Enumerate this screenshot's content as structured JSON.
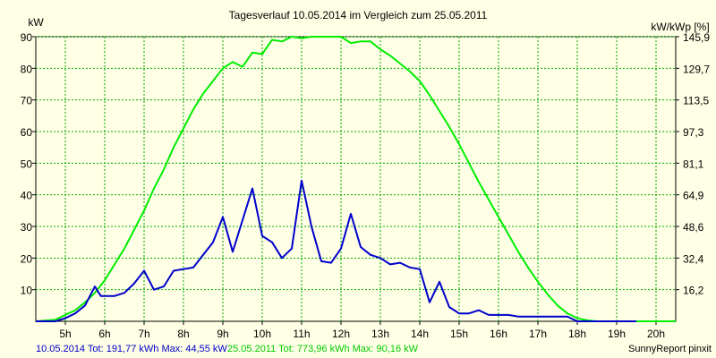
{
  "chart_data": {
    "type": "line",
    "title": "Tagesverlauf 10.05.2014 im Vergleich zum 25.05.2011",
    "ylabel_left": "kW",
    "ylabel_right": "kW/kWp [%]",
    "xlim": [
      4.25,
      20.5
    ],
    "ylim": [
      0,
      90
    ],
    "grid": true,
    "x_ticks": [
      5,
      6,
      7,
      8,
      9,
      10,
      11,
      12,
      13,
      14,
      15,
      16,
      17,
      18,
      19,
      20
    ],
    "x_tick_labels": [
      "5h",
      "6h",
      "7h",
      "8h",
      "9h",
      "10h",
      "11h",
      "12h",
      "13h",
      "14h",
      "15h",
      "16h",
      "17h",
      "18h",
      "19h",
      "20h"
    ],
    "y_ticks": [
      10,
      20,
      30,
      40,
      50,
      60,
      70,
      80,
      90
    ],
    "y_tick_labels": [
      "10",
      "20",
      "30",
      "40",
      "50",
      "60",
      "70",
      "80",
      "90"
    ],
    "y2_tick_labels": [
      "16,2",
      "32,4",
      "48,6",
      "64,9",
      "81,1",
      "97,3",
      "113,5",
      "129,7",
      "145,9"
    ],
    "series": [
      {
        "color": "#0000cc",
        "values": [
          [
            4.25,
            0
          ],
          [
            4.75,
            0
          ],
          [
            5.0,
            1
          ],
          [
            5.25,
            2.5
          ],
          [
            5.5,
            5
          ],
          [
            5.75,
            11
          ],
          [
            5.9,
            8
          ],
          [
            6.25,
            8
          ],
          [
            6.5,
            9
          ],
          [
            6.75,
            12
          ],
          [
            7.0,
            16
          ],
          [
            7.25,
            10
          ],
          [
            7.5,
            11
          ],
          [
            7.75,
            16
          ],
          [
            8.0,
            16.5
          ],
          [
            8.25,
            17
          ],
          [
            8.5,
            21
          ],
          [
            8.75,
            25
          ],
          [
            9.0,
            33
          ],
          [
            9.25,
            22
          ],
          [
            9.5,
            32
          ],
          [
            9.75,
            42
          ],
          [
            10.0,
            27
          ],
          [
            10.25,
            25
          ],
          [
            10.5,
            20
          ],
          [
            10.75,
            23
          ],
          [
            11.0,
            44.5
          ],
          [
            11.25,
            30
          ],
          [
            11.5,
            19
          ],
          [
            11.75,
            18.5
          ],
          [
            12.0,
            23
          ],
          [
            12.25,
            34
          ],
          [
            12.5,
            23.5
          ],
          [
            12.75,
            21
          ],
          [
            13.0,
            20
          ],
          [
            13.25,
            18
          ],
          [
            13.5,
            18.5
          ],
          [
            13.75,
            17
          ],
          [
            14.0,
            16.5
          ],
          [
            14.25,
            6
          ],
          [
            14.5,
            12.5
          ],
          [
            14.75,
            4.5
          ],
          [
            15.0,
            2.5
          ],
          [
            15.25,
            2.5
          ],
          [
            15.5,
            3.5
          ],
          [
            15.75,
            2
          ],
          [
            16.0,
            2
          ],
          [
            16.25,
            2
          ],
          [
            16.5,
            1.5
          ],
          [
            17.0,
            1.5
          ],
          [
            17.5,
            1.5
          ],
          [
            17.75,
            1.5
          ],
          [
            18.0,
            0
          ],
          [
            18.5,
            0
          ],
          [
            19.0,
            0
          ],
          [
            19.5,
            0
          ]
        ]
      },
      {
        "color": "#00ee00",
        "values": [
          [
            4.25,
            0
          ],
          [
            4.75,
            0.5
          ],
          [
            5.0,
            2
          ],
          [
            5.25,
            3.5
          ],
          [
            5.5,
            6
          ],
          [
            5.75,
            9
          ],
          [
            6.0,
            13
          ],
          [
            6.25,
            18
          ],
          [
            6.5,
            23
          ],
          [
            6.75,
            29
          ],
          [
            7.0,
            35
          ],
          [
            7.25,
            42
          ],
          [
            7.5,
            48
          ],
          [
            7.75,
            55
          ],
          [
            8.0,
            61
          ],
          [
            8.25,
            67
          ],
          [
            8.5,
            72
          ],
          [
            8.75,
            76
          ],
          [
            9.0,
            80
          ],
          [
            9.25,
            82
          ],
          [
            9.5,
            80.5
          ],
          [
            9.75,
            85
          ],
          [
            10.0,
            84.5
          ],
          [
            10.25,
            89
          ],
          [
            10.5,
            88.5
          ],
          [
            10.75,
            90
          ],
          [
            11.0,
            89.5
          ],
          [
            11.25,
            90
          ],
          [
            11.5,
            90
          ],
          [
            11.75,
            90
          ],
          [
            12.0,
            90
          ],
          [
            12.25,
            88
          ],
          [
            12.5,
            88.5
          ],
          [
            12.75,
            88.5
          ],
          [
            13.0,
            86
          ],
          [
            13.25,
            84
          ],
          [
            13.5,
            81.5
          ],
          [
            13.75,
            79
          ],
          [
            14.0,
            76
          ],
          [
            14.25,
            71.5
          ],
          [
            14.5,
            66.5
          ],
          [
            14.75,
            61.5
          ],
          [
            15.0,
            56
          ],
          [
            15.25,
            50
          ],
          [
            15.5,
            44
          ],
          [
            15.75,
            38.5
          ],
          [
            16.0,
            33
          ],
          [
            16.25,
            27.5
          ],
          [
            16.5,
            22
          ],
          [
            16.75,
            17
          ],
          [
            17.0,
            12.5
          ],
          [
            17.25,
            8.5
          ],
          [
            17.5,
            5
          ],
          [
            17.75,
            2.5
          ],
          [
            18.0,
            1
          ],
          [
            18.25,
            0.3
          ],
          [
            18.5,
            0
          ],
          [
            19.0,
            0
          ],
          [
            20.0,
            0
          ],
          [
            20.5,
            0
          ]
        ]
      }
    ],
    "footer": {
      "series1_text": "10.05.2014 Tot: 191,77 kWh Max: 44,55 kW",
      "series2_text": "25.05.2011 Tot: 773,96 kWh Max: 90,16 kW",
      "credit": "SunnyReport pinxit"
    }
  }
}
